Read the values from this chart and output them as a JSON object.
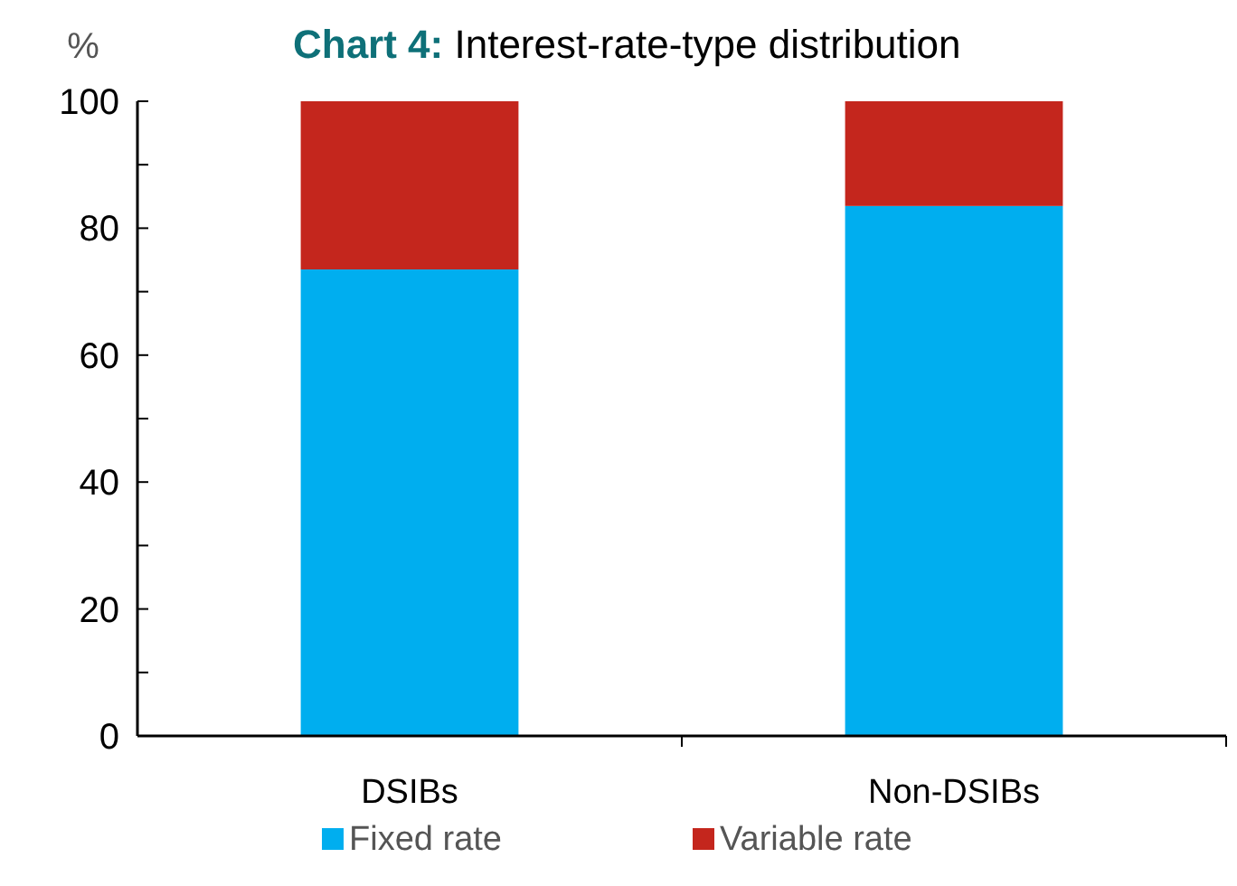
{
  "chart_data": {
    "type": "bar",
    "title": "Chart 4: Interest-rate-type distribution",
    "ylabel": "%",
    "categories": [
      "DSIBs",
      "Non-DSIBs"
    ],
    "stacked": true,
    "series": [
      {
        "name": "Fixed rate",
        "color": "#00aeef",
        "values": [
          73.5,
          83.5
        ]
      },
      {
        "name": "Variable rate",
        "color": "#c4261d",
        "values": [
          26.5,
          16.5
        ]
      }
    ],
    "ylim": [
      0,
      100
    ],
    "yticks": [
      0,
      {
        "value": 10,
        "label": null
      },
      20,
      {
        "value": 30,
        "label": null
      },
      40,
      {
        "value": 50,
        "label": null
      },
      60,
      {
        "value": 70,
        "label": null
      },
      80,
      {
        "value": 90,
        "label": null
      },
      100
    ],
    "grid": false,
    "legend": "bottom"
  }
}
